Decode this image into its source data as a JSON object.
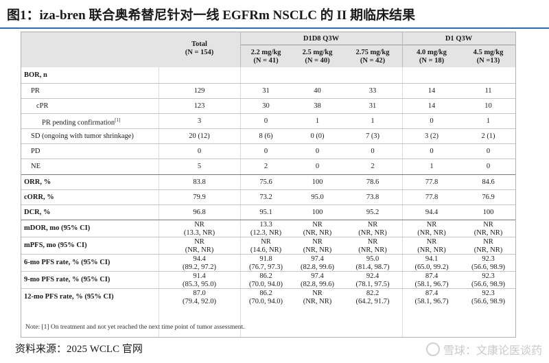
{
  "title": "图1：iza-bren 联合奥希替尼针对一线 EGFRm NSCLC 的 II 期临床结果",
  "header": {
    "total": "Total",
    "total_n": "(N = 154)",
    "group1": "D1D8 Q3W",
    "group2": "D1 Q3W",
    "doses": [
      {
        "dose": "2.2 mg/kg",
        "n": "(N = 41)"
      },
      {
        "dose": "2.5 mg/kg",
        "n": "(N = 40)"
      },
      {
        "dose": "2.75 mg/kg",
        "n": "(N = 42)"
      },
      {
        "dose": "4.0 mg/kg",
        "n": "(N = 18)"
      },
      {
        "dose": "4.5 mg/kg",
        "n": "(N =13)"
      }
    ]
  },
  "rows": [
    {
      "label": "BOR, n",
      "bold": true,
      "v": []
    },
    {
      "label": "PR",
      "v": [
        "129",
        "31",
        "40",
        "33",
        "14",
        "11"
      ]
    },
    {
      "label": "cPR",
      "v": [
        "123",
        "30",
        "38",
        "31",
        "14",
        "10"
      ]
    },
    {
      "label": "PR pending confirmation",
      "sup": "[1]",
      "v": [
        "3",
        "0",
        "1",
        "1",
        "0",
        "1"
      ]
    },
    {
      "label": "SD (ongoing with tumor shrinkage)",
      "v": [
        "20 (12)",
        "8 (6)",
        "0 (0)",
        "7 (3)",
        "3 (2)",
        "2 (1)"
      ]
    },
    {
      "label": "PD",
      "v": [
        "0",
        "0",
        "0",
        "0",
        "0",
        "0"
      ]
    },
    {
      "label": "NE",
      "v": [
        "5",
        "2",
        "0",
        "2",
        "1",
        "0"
      ]
    },
    {
      "label": "ORR, %",
      "bold": true,
      "v": [
        "83.8",
        "75.6",
        "100",
        "78.6",
        "77.8",
        "84.6"
      ]
    },
    {
      "label": "cORR, %",
      "bold": true,
      "v": [
        "79.9",
        "73.2",
        "95.0",
        "73.8",
        "77.8",
        "76.9"
      ]
    },
    {
      "label": "DCR, %",
      "bold": true,
      "v": [
        "96.8",
        "95.1",
        "100",
        "95.2",
        "94.4",
        "100"
      ]
    },
    {
      "label": "mDOR, mo (95% CI)",
      "bold": true,
      "v": [
        "NR",
        "13.3",
        "NR",
        "NR",
        "NR",
        "NR"
      ],
      "ci": [
        "(13.3, NR)",
        "(12.3, NR)",
        "(NR, NR)",
        "(NR, NR)",
        "(NR, NR)",
        "(NR, NR)"
      ]
    },
    {
      "label": "mPFS, mo (95% CI)",
      "bold": true,
      "v": [
        "NR",
        "NR",
        "NR",
        "NR",
        "NR",
        "NR"
      ],
      "ci": [
        "(NR, NR)",
        "(14.6, NR)",
        "(NR, NR)",
        "(NR, NR)",
        "(NR, NR)",
        "(NR, NR)"
      ]
    },
    {
      "label": "6-mo PFS rate, % (95% CI)",
      "bold": true,
      "v": [
        "94.4",
        "91.8",
        "97.4",
        "95.0",
        "94.1",
        "92.3"
      ],
      "ci": [
        "(89.2, 97.2)",
        "(76.7, 97.3)",
        "(82.8, 99.6)",
        "(81.4, 98.7)",
        "(65.0, 99.2)",
        "(56.6, 98.9)"
      ]
    },
    {
      "label": "9-mo PFS rate, % (95% CI)",
      "bold": true,
      "v": [
        "91.4",
        "86.2",
        "97.4",
        "92.4",
        "87.4",
        "92.3"
      ],
      "ci": [
        "(85.3, 95.0)",
        "(70.0, 94.0)",
        "(82.8, 99.6)",
        "(78.1, 97.5)",
        "(58.1, 96.7)",
        "(56.6, 98.9)"
      ]
    },
    {
      "label": "12-mo PFS rate, % (95% CI)",
      "bold": true,
      "v": [
        "87.0",
        "86.2",
        "NR",
        "82.2",
        "87.4",
        "92.3"
      ],
      "ci": [
        "(79.4, 92.0)",
        "(70.0, 94.0)",
        "(NR, NR)",
        "(64.2, 91.7)",
        "(58.1, 96.7)",
        "(56.6, 98.9)"
      ]
    }
  ],
  "note": "Note: [1] On treatment and not yet reached the next time point of tumor assessment.",
  "source": "资料来源：2025 WCLC 官网",
  "watermark": "雪球：文康论医谈药"
}
